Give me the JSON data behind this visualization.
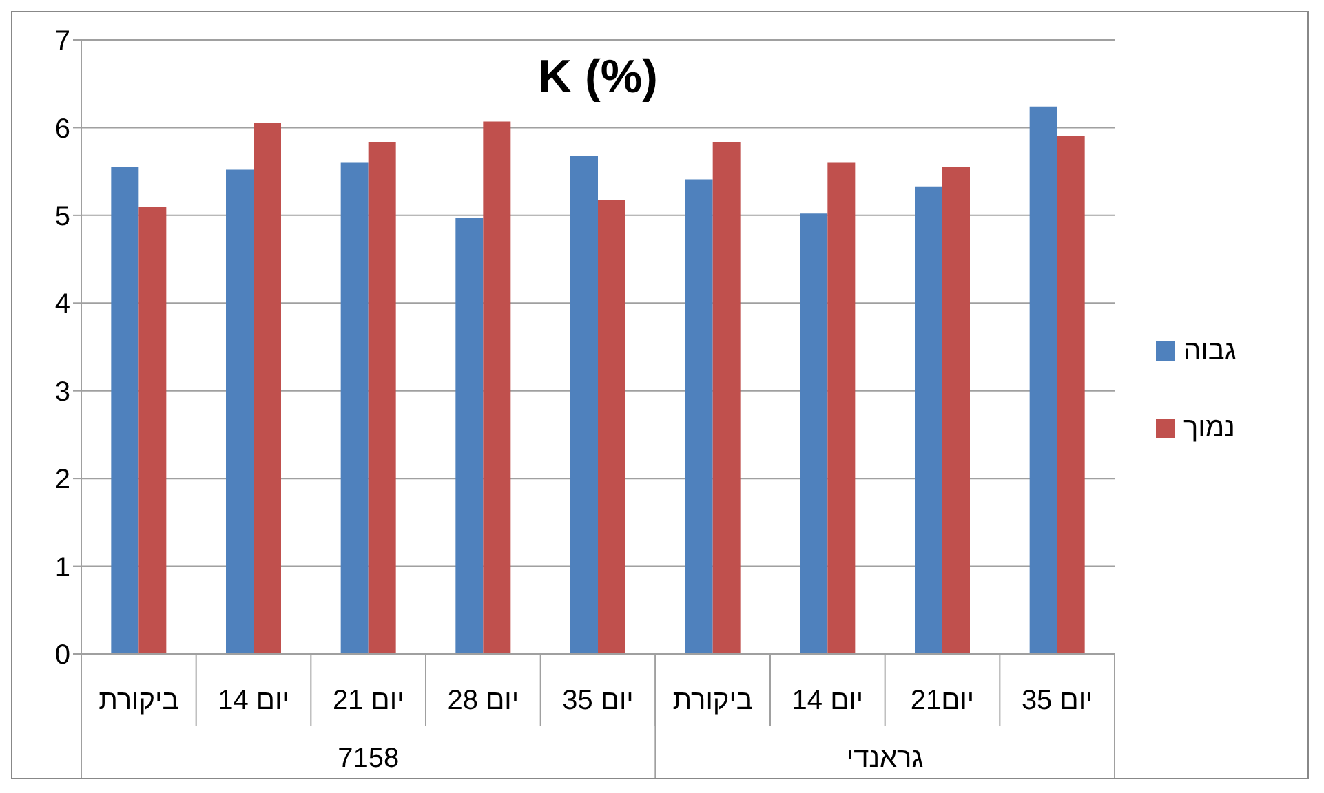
{
  "chart_data": {
    "type": "bar",
    "title": "K (%)",
    "categories": [
      "ביקורת",
      "14 יום",
      "21 יום",
      "28 יום",
      "35 יום",
      "ביקורת",
      "14 יום",
      "21יום",
      "35 יום"
    ],
    "series": [
      {
        "name": "גבוה",
        "color": "#4f81bd",
        "values": [
          5.55,
          5.52,
          5.6,
          4.97,
          5.68,
          5.41,
          5.02,
          5.33,
          6.24
        ]
      },
      {
        "name": "נמוך",
        "color": "#c0504d",
        "values": [
          5.1,
          6.05,
          5.83,
          6.07,
          5.18,
          5.83,
          5.6,
          5.55,
          5.91
        ]
      }
    ],
    "annotations": [
      "7158",
      "גראנדי"
    ],
    "ylim": [
      0,
      7
    ],
    "yticks": [
      0,
      1,
      2,
      3,
      4,
      5,
      6,
      7
    ],
    "grid": "y",
    "legend": "right"
  }
}
